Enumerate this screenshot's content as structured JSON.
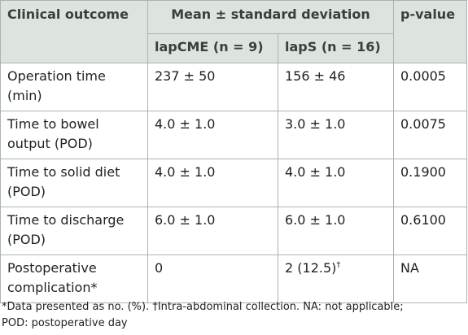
{
  "table": {
    "header": {
      "outcome": "Clinical outcome",
      "mean_sd": "Mean ± standard deviation",
      "pvalue": "p-value",
      "group1": "lapCME (n = 9)",
      "group2": "lapS (n = 16)"
    },
    "rows": [
      {
        "outcome_line1": "Operation time",
        "outcome_line2": "(min)",
        "group1": "237 ± 50",
        "group2": "156 ± 46",
        "group2_sup": "",
        "p": "0.0005"
      },
      {
        "outcome_line1": "Time to bowel",
        "outcome_line2": "output (POD)",
        "group1": "4.0 ± 1.0",
        "group2": "3.0 ± 1.0",
        "group2_sup": "",
        "p": "0.0075"
      },
      {
        "outcome_line1": "Time to solid diet",
        "outcome_line2": "(POD)",
        "group1": "4.0 ± 1.0",
        "group2": "4.0 ± 1.0",
        "group2_sup": "",
        "p": "0.1900"
      },
      {
        "outcome_line1": "Time to discharge",
        "outcome_line2": "(POD)",
        "group1": "6.0 ± 1.0",
        "group2": "6.0 ± 1.0",
        "group2_sup": "",
        "p": "0.6100"
      },
      {
        "outcome_line1": "Postoperative",
        "outcome_line2": "complication*",
        "group1": "0",
        "group2": "2 (12.5)",
        "group2_sup": "†",
        "p": "NA"
      }
    ]
  },
  "footnote": {
    "line1": "*Data presented as no. (%). †Intra-abdominal collection. NA: not applicable;",
    "line2": "POD: postoperative day"
  }
}
